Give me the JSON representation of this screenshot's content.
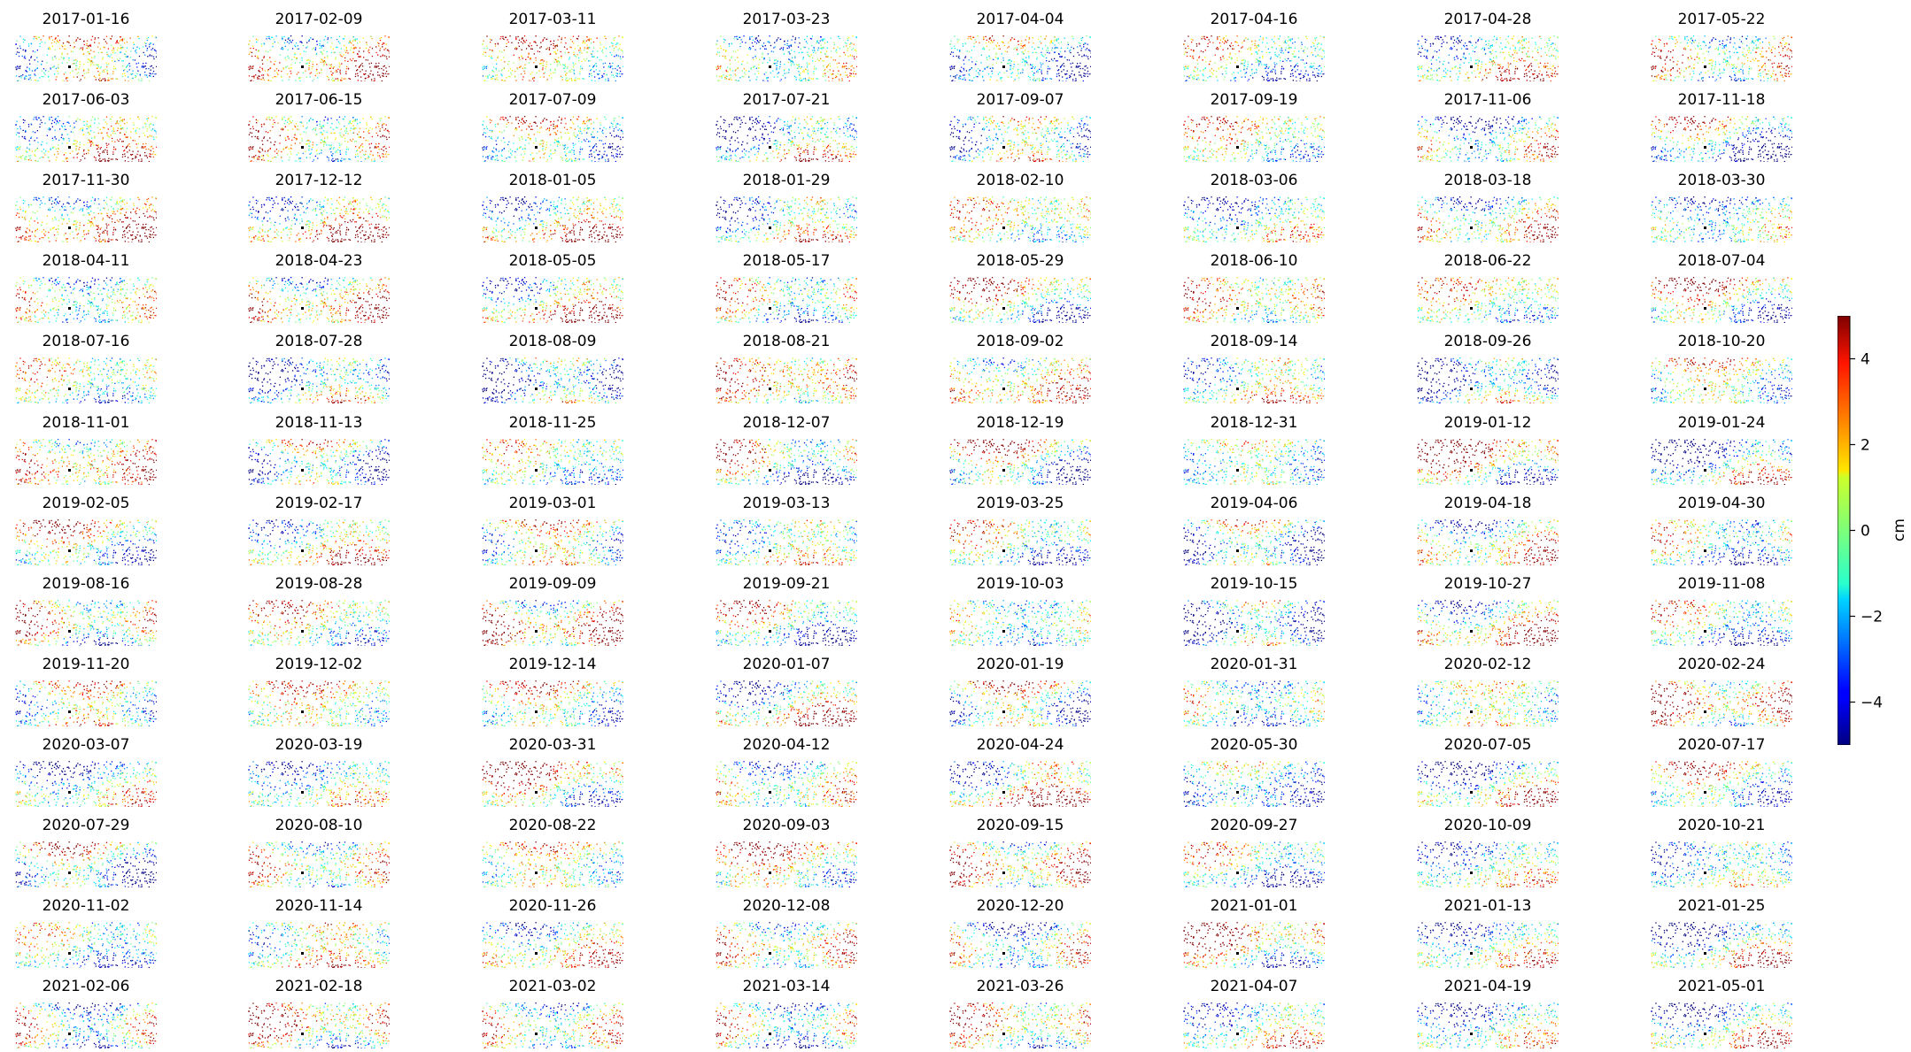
{
  "chart_data": {
    "type": "scatter",
    "layout": {
      "columns": 8,
      "rows": 13
    },
    "panel_titles": [
      "2017-01-16",
      "2017-02-09",
      "2017-03-11",
      "2017-03-23",
      "2017-04-04",
      "2017-04-16",
      "2017-04-28",
      "2017-05-22",
      "2017-06-03",
      "2017-06-15",
      "2017-07-09",
      "2017-07-21",
      "2017-09-07",
      "2017-09-19",
      "2017-11-06",
      "2017-11-18",
      "2017-11-30",
      "2017-12-12",
      "2018-01-05",
      "2018-01-29",
      "2018-02-10",
      "2018-03-06",
      "2018-03-18",
      "2018-03-30",
      "2018-04-11",
      "2018-04-23",
      "2018-05-05",
      "2018-05-17",
      "2018-05-29",
      "2018-06-10",
      "2018-06-22",
      "2018-07-04",
      "2018-07-16",
      "2018-07-28",
      "2018-08-09",
      "2018-08-21",
      "2018-09-02",
      "2018-09-14",
      "2018-09-26",
      "2018-10-20",
      "2018-11-01",
      "2018-11-13",
      "2018-11-25",
      "2018-12-07",
      "2018-12-19",
      "2018-12-31",
      "2019-01-12",
      "2019-01-24",
      "2019-02-05",
      "2019-02-17",
      "2019-03-01",
      "2019-03-13",
      "2019-03-25",
      "2019-04-06",
      "2019-04-18",
      "2019-04-30",
      "2019-08-16",
      "2019-08-28",
      "2019-09-09",
      "2019-09-21",
      "2019-10-03",
      "2019-10-15",
      "2019-10-27",
      "2019-11-08",
      "2019-11-20",
      "2019-12-02",
      "2019-12-14",
      "2020-01-07",
      "2020-01-19",
      "2020-01-31",
      "2020-02-12",
      "2020-02-24",
      "2020-03-07",
      "2020-03-19",
      "2020-03-31",
      "2020-04-12",
      "2020-04-24",
      "2020-05-30",
      "2020-07-05",
      "2020-07-17",
      "2020-07-29",
      "2020-08-10",
      "2020-08-22",
      "2020-09-03",
      "2020-09-15",
      "2020-09-27",
      "2020-10-09",
      "2020-10-21",
      "2020-11-02",
      "2020-11-14",
      "2020-11-26",
      "2020-12-08",
      "2020-12-20",
      "2021-01-01",
      "2021-01-13",
      "2021-01-25",
      "2021-02-06",
      "2021-02-18",
      "2021-03-02",
      "2021-03-14",
      "2021-03-26",
      "2021-04-07",
      "2021-04-19",
      "2021-05-01"
    ],
    "colorbar": {
      "colormap": "jet",
      "vmin": -5,
      "vmax": 5,
      "ticks": [
        4,
        2,
        0,
        -2,
        -4
      ],
      "tick_labels": [
        "4",
        "2",
        "0",
        "−2",
        "−4"
      ],
      "label": "cm"
    },
    "reference_point_color": "#000000",
    "axes": "off"
  }
}
